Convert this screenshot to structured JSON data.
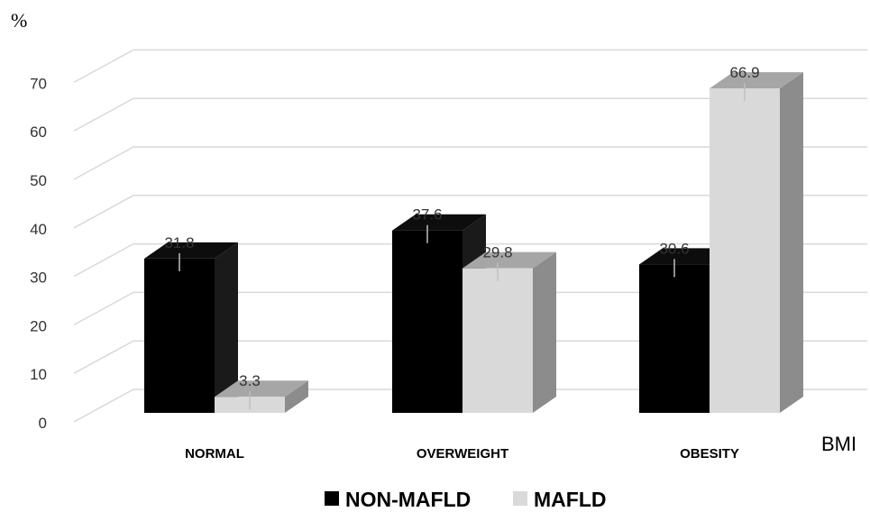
{
  "chart_data": {
    "type": "bar",
    "ylabel": "%",
    "xlabel": "BMI",
    "categories": [
      "NORMAL",
      "OVERWEIGHT",
      "OBESITY"
    ],
    "series": [
      {
        "name": "NON-MAFLD",
        "values": [
          31.8,
          37.6,
          30.6
        ],
        "color": "#000000"
      },
      {
        "name": "MAFLD",
        "values": [
          3.3,
          29.8,
          66.9
        ],
        "color": "#d9d9d9"
      }
    ],
    "ylim": [
      0,
      70
    ],
    "yticks": [
      "0",
      "10",
      "20",
      "30",
      "40",
      "50",
      "60",
      "70"
    ],
    "value_labels": [
      [
        "31.8",
        "37.6",
        "30.6"
      ],
      [
        "3.3",
        "29.8",
        "66.9"
      ]
    ],
    "style": "3d-clustered-column",
    "legend_position": "bottom",
    "grid": true
  }
}
